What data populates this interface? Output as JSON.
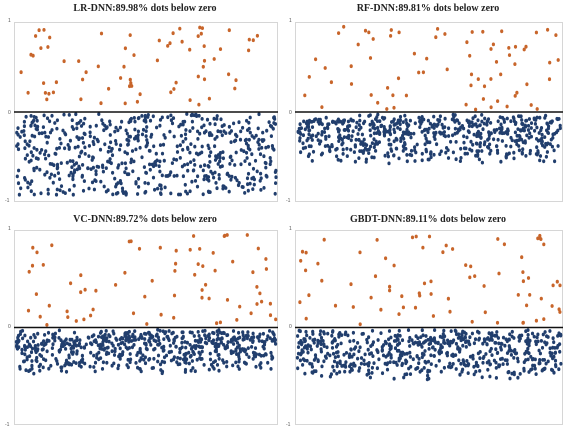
{
  "chart_data": [
    {
      "type": "scatter",
      "title": "LR-DNN:89.98% dots below zero",
      "ylim": [
        -1,
        1
      ],
      "yticks": [
        "1",
        "0",
        "-1"
      ],
      "percent_below_zero": 89.98,
      "grid": false,
      "legend": "none",
      "colors": {
        "above": "#c8652a",
        "below": "#213e6d",
        "zero_line": "#111111"
      },
      "n_points": 700
    },
    {
      "type": "scatter",
      "title": "RF-DNN:89.81% dots below zero",
      "ylim": [
        -1,
        1
      ],
      "yticks": [
        "1",
        "0",
        "-1"
      ],
      "percent_below_zero": 89.81,
      "grid": false,
      "legend": "none",
      "colors": {
        "above": "#c8652a",
        "below": "#213e6d",
        "zero_line": "#111111"
      },
      "n_points": 700
    },
    {
      "type": "scatter",
      "title": "VC-DNN:89.72% dots below zero",
      "ylim": [
        -1,
        1
      ],
      "yticks": [
        "1",
        "0",
        "-1"
      ],
      "percent_below_zero": 89.72,
      "grid": false,
      "legend": "none",
      "colors": {
        "above": "#c8652a",
        "below": "#213e6d",
        "zero_line": "#111111"
      },
      "n_points": 700
    },
    {
      "type": "scatter",
      "title": "GBDT-DNN:89.11% dots below zero",
      "ylim": [
        -1,
        1
      ],
      "yticks": [
        "1",
        "0",
        "-1"
      ],
      "percent_below_zero": 89.11,
      "grid": false,
      "legend": "none",
      "colors": {
        "above": "#c8652a",
        "below": "#213e6d",
        "zero_line": "#111111"
      },
      "n_points": 700
    }
  ]
}
